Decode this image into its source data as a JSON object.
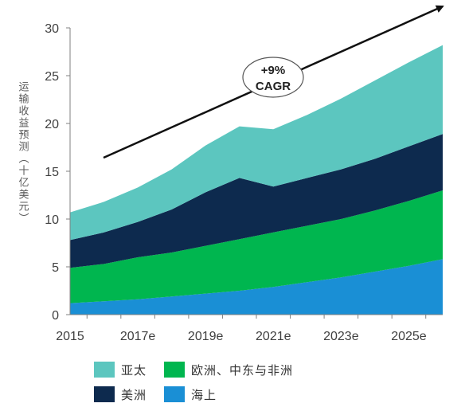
{
  "chart_data": {
    "type": "area",
    "stacked": true,
    "x": [
      2015,
      2016,
      2017,
      2018,
      2019,
      2020,
      2021,
      2022,
      2023,
      2024,
      2025,
      2026
    ],
    "x_tick_labels": [
      "2015",
      "2017e",
      "2019e",
      "2021e",
      "2023e",
      "2025e"
    ],
    "ylabel": "运输收益预测（十亿美元）",
    "ylim": [
      0,
      30
    ],
    "y_ticks": [
      0,
      5,
      10,
      15,
      20,
      25,
      30
    ],
    "series": [
      {
        "name": "海上",
        "color": "#1a8fd5",
        "values": [
          1.2,
          1.4,
          1.6,
          1.9,
          2.2,
          2.5,
          2.9,
          3.4,
          3.9,
          4.5,
          5.1,
          5.8
        ]
      },
      {
        "name": "欧洲、中东与非洲",
        "color": "#00b64f",
        "values": [
          3.7,
          3.9,
          4.4,
          4.6,
          5.0,
          5.4,
          5.7,
          5.9,
          6.1,
          6.4,
          6.8,
          7.2
        ]
      },
      {
        "name": "美洲",
        "color": "#0d2a4e",
        "values": [
          2.9,
          3.3,
          3.7,
          4.5,
          5.6,
          6.4,
          4.8,
          5.0,
          5.2,
          5.4,
          5.7,
          5.9
        ]
      },
      {
        "name": "亚太",
        "color": "#5cc6bf",
        "values": [
          2.9,
          3.2,
          3.6,
          4.2,
          4.9,
          5.4,
          6.0,
          6.6,
          7.4,
          8.2,
          8.8,
          9.3
        ]
      }
    ],
    "annotation": {
      "text_lines": [
        "+9%",
        "CAGR"
      ]
    },
    "legend": {
      "placement": "bottom"
    }
  }
}
